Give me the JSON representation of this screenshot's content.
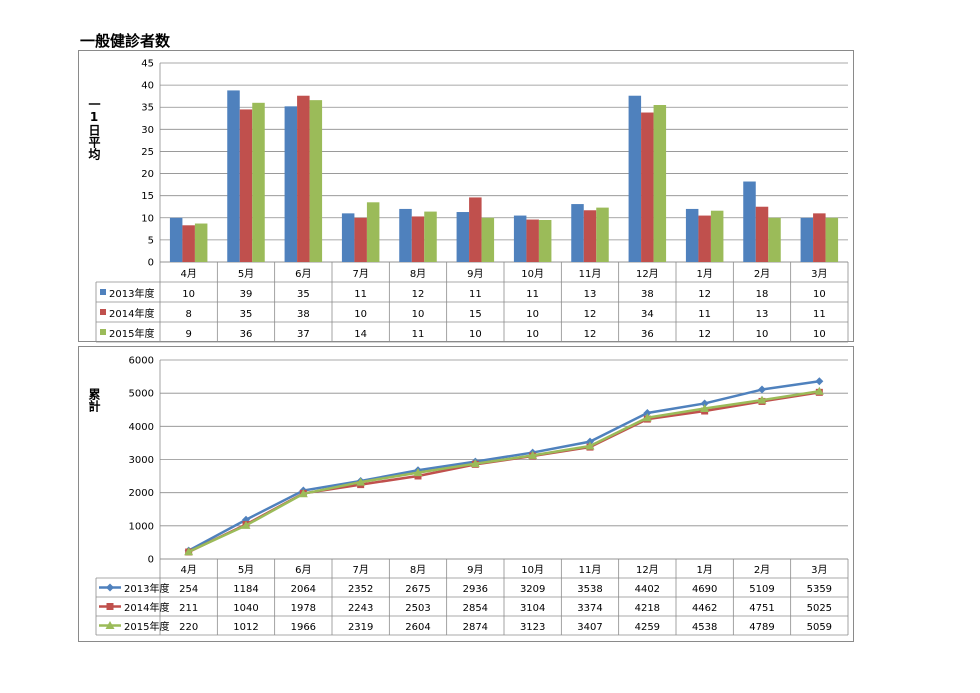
{
  "title": "一般健診者数",
  "chart_data": [
    {
      "type": "bar",
      "ylabel": "一1日平均",
      "ylim": [
        0,
        45
      ],
      "ystep": 5,
      "grid": true,
      "legend": "table-below",
      "categories": [
        "4月",
        "5月",
        "6月",
        "7月",
        "8月",
        "9月",
        "10月",
        "11月",
        "12月",
        "1月",
        "2月",
        "3月"
      ],
      "series": [
        {
          "name": "2013年度",
          "color": "#4f81bd",
          "values": [
            10,
            38.8,
            35.2,
            11,
            12,
            11.3,
            10.5,
            13.1,
            37.6,
            12,
            18.2,
            10
          ],
          "labels": [
            "10",
            "39",
            "35",
            "11",
            "12",
            "11",
            "11",
            "13",
            "38",
            "12",
            "18",
            "10"
          ]
        },
        {
          "name": "2014年度",
          "color": "#c0504d",
          "values": [
            8.3,
            34.5,
            37.6,
            10,
            10.3,
            14.6,
            9.6,
            11.7,
            33.8,
            10.5,
            12.5,
            11
          ],
          "labels": [
            "8",
            "35",
            "38",
            "10",
            "10",
            "15",
            "10",
            "12",
            "34",
            "11",
            "13",
            "11"
          ]
        },
        {
          "name": "2015年度",
          "color": "#9bbb59",
          "values": [
            8.7,
            36,
            36.6,
            13.5,
            11.4,
            10,
            9.5,
            12.3,
            35.5,
            11.6,
            10,
            10
          ],
          "labels": [
            "9",
            "36",
            "37",
            "14",
            "11",
            "10",
            "10",
            "12",
            "36",
            "12",
            "10",
            "10"
          ]
        }
      ]
    },
    {
      "type": "line",
      "ylabel": "累計",
      "ylim": [
        0,
        6000
      ],
      "ystep": 1000,
      "grid": true,
      "legend": "table-below",
      "categories": [
        "4月",
        "5月",
        "6月",
        "7月",
        "8月",
        "9月",
        "10月",
        "11月",
        "12月",
        "1月",
        "2月",
        "3月"
      ],
      "series": [
        {
          "name": "2013年度",
          "color": "#4f81bd",
          "marker": "diamond",
          "values": [
            254,
            1184,
            2064,
            2352,
            2675,
            2936,
            3209,
            3538,
            4402,
            4690,
            5109,
            5359
          ]
        },
        {
          "name": "2014年度",
          "color": "#c0504d",
          "marker": "square",
          "values": [
            211,
            1040,
            1978,
            2243,
            2503,
            2854,
            3104,
            3374,
            4218,
            4462,
            4751,
            5025
          ]
        },
        {
          "name": "2015年度",
          "color": "#9bbb59",
          "marker": "triangle",
          "values": [
            220,
            1012,
            1966,
            2319,
            2604,
            2874,
            3123,
            3407,
            4259,
            4538,
            4789,
            5059
          ]
        }
      ]
    }
  ]
}
